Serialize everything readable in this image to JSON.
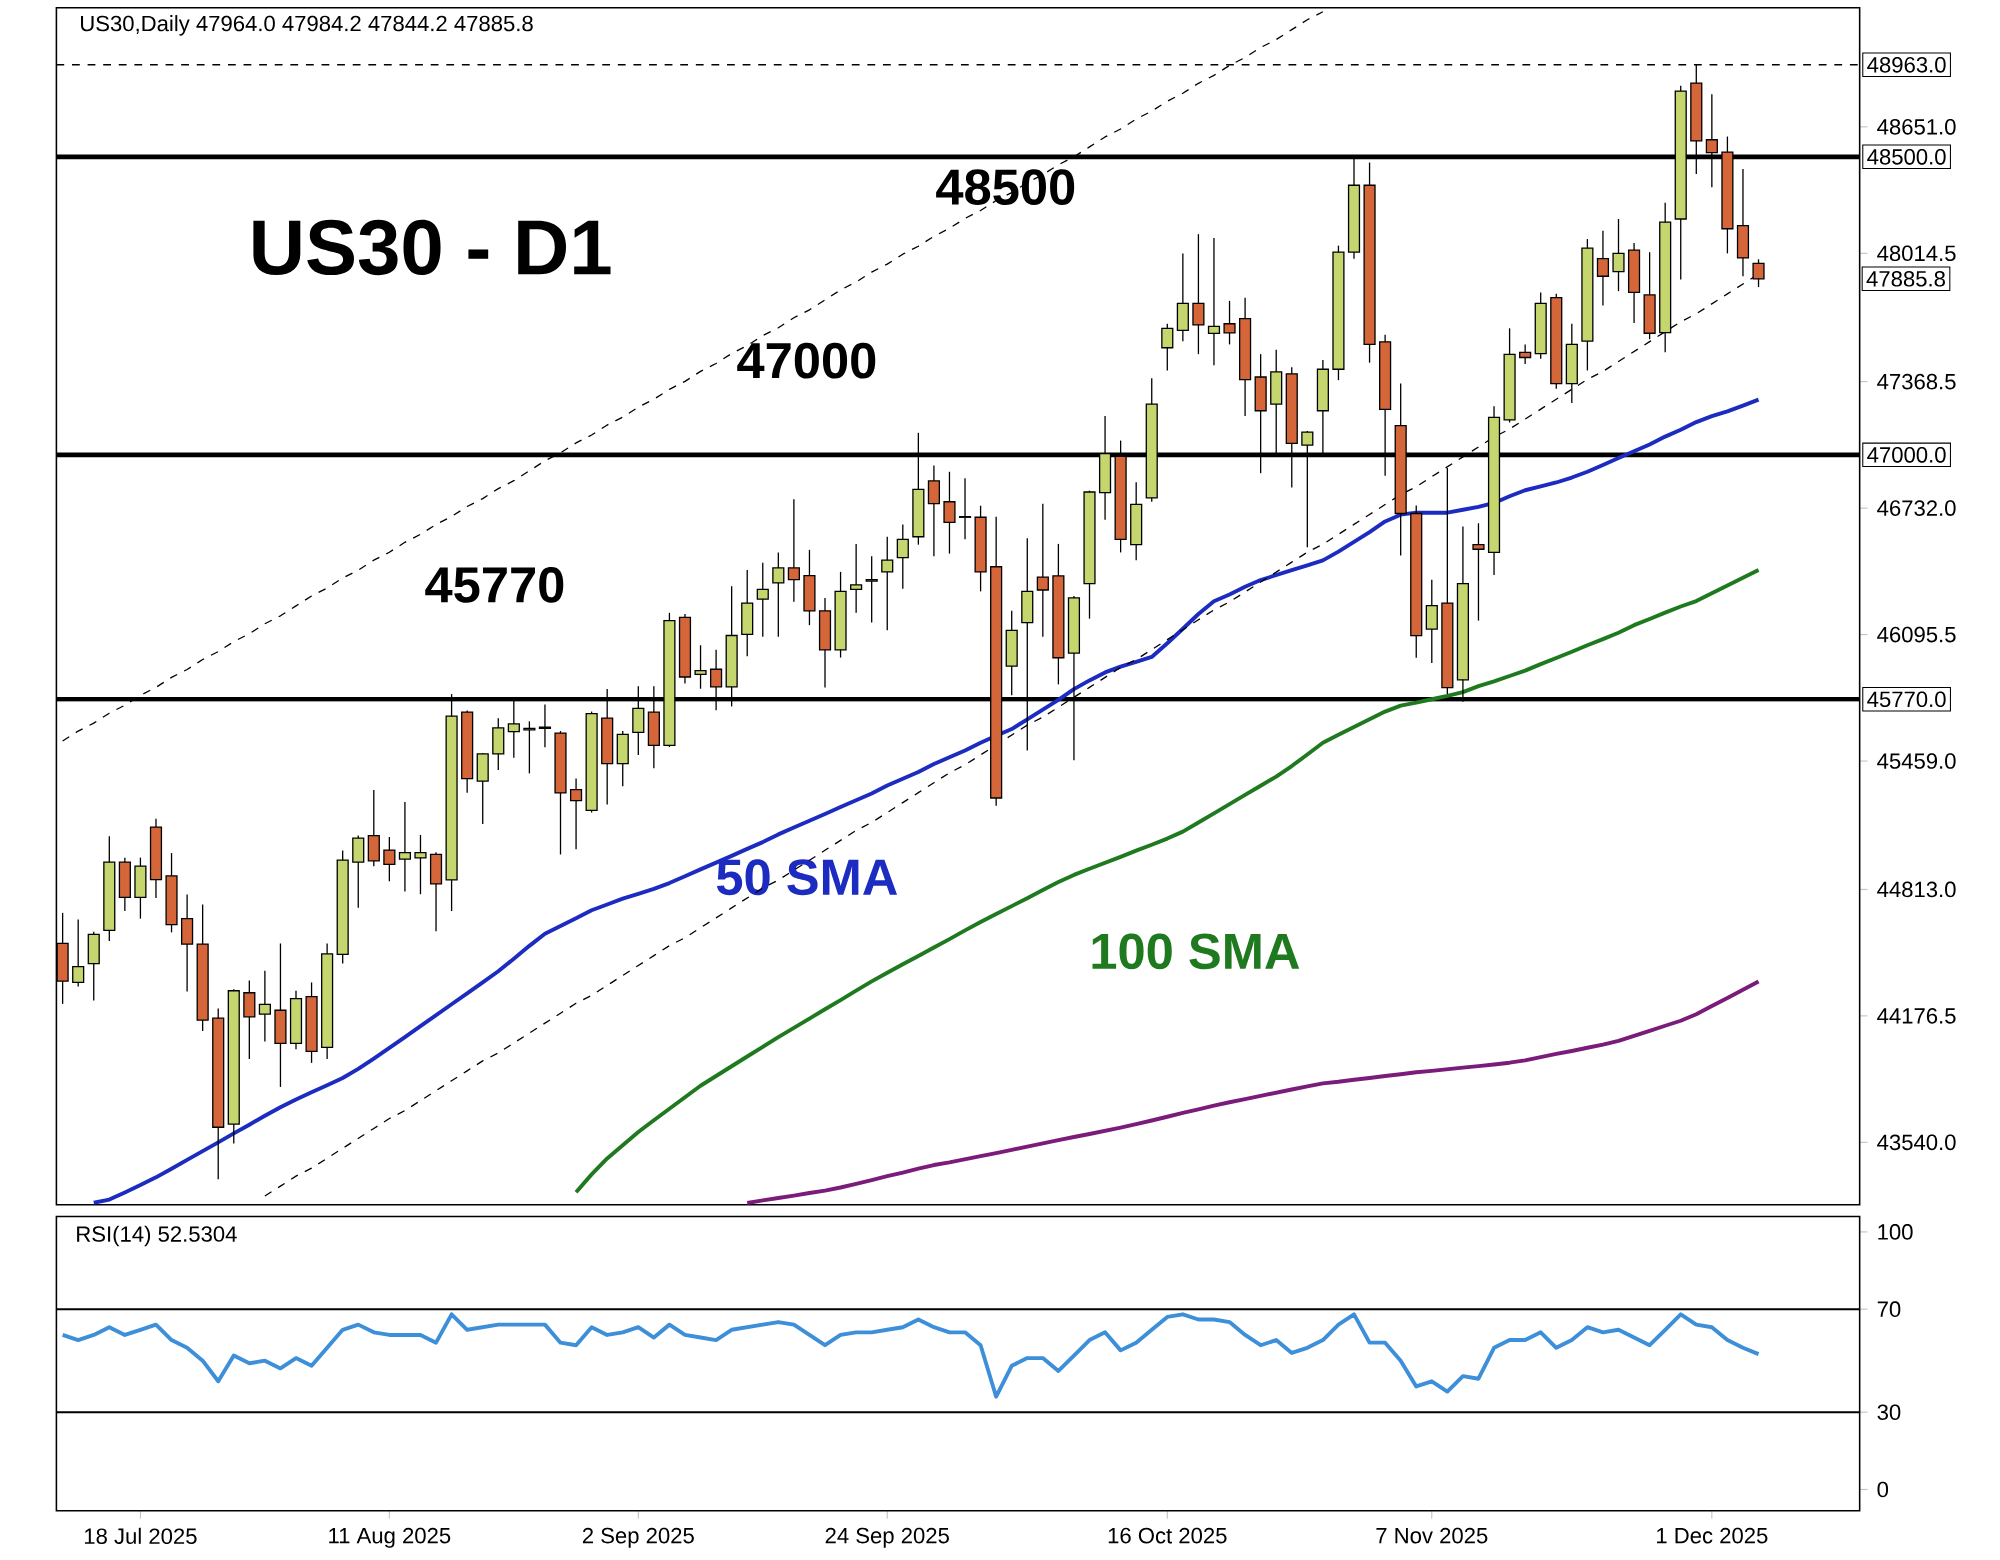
{
  "chart_data": [
    {
      "type": "candlestick",
      "title": "US30,Daily 47964.0 47984.2 47844.2 47885.8",
      "categories": [
        null,
        null,
        null,
        null,
        null,
        null,
        null,
        null,
        null,
        null,
        null,
        null,
        null,
        null,
        null,
        null,
        null,
        null,
        null,
        null,
        null,
        null,
        null,
        null,
        null,
        null,
        null,
        null,
        null,
        null,
        null,
        null,
        null,
        null,
        null,
        null,
        null,
        null,
        null,
        null,
        null,
        null,
        null,
        null,
        null,
        null,
        null,
        null,
        null,
        null,
        null,
        null,
        null,
        null,
        null,
        null,
        null,
        null,
        null,
        null,
        null,
        null,
        null,
        null,
        null,
        null,
        null,
        null,
        null,
        null,
        null,
        null,
        null,
        null,
        null,
        null,
        null,
        null,
        null,
        null,
        null,
        null,
        null,
        null,
        null,
        null,
        null,
        null,
        null,
        null,
        null,
        null,
        null,
        null,
        null,
        null,
        null,
        null,
        null,
        null,
        null,
        null,
        null,
        null,
        null,
        null,
        null,
        null,
        null,
        null
      ],
      "ohlc": [
        [
          44541,
          44695,
          44237,
          44352
        ],
        [
          44345,
          44662,
          44325,
          44424
        ],
        [
          44440,
          44600,
          44254,
          44587
        ],
        [
          44607,
          45081,
          44554,
          44950
        ],
        [
          44950,
          44973,
          44705,
          44773
        ],
        [
          44773,
          44973,
          44666,
          44930
        ],
        [
          45127,
          45169,
          44770,
          44862
        ],
        [
          44881,
          44996,
          44597,
          44636
        ],
        [
          44666,
          44787,
          44299,
          44538
        ],
        [
          44538,
          44737,
          44100,
          44155
        ],
        [
          44165,
          44214,
          43354,
          43616
        ],
        [
          43632,
          44310,
          43534,
          44303
        ],
        [
          44293,
          44355,
          43959,
          44172
        ],
        [
          44185,
          44404,
          44048,
          44234
        ],
        [
          44205,
          44541,
          43819,
          44038
        ],
        [
          44038,
          44303,
          44008,
          44263
        ],
        [
          44273,
          44345,
          43940,
          43998
        ],
        [
          44018,
          44541,
          43959,
          44489
        ],
        [
          44486,
          45009,
          44440,
          44960
        ],
        [
          44950,
          45084,
          44721,
          45071
        ],
        [
          45084,
          45313,
          44930,
          44957
        ],
        [
          45011,
          45077,
          44854,
          44939
        ],
        [
          44966,
          45253,
          44802,
          44998
        ],
        [
          44972,
          45087,
          44789,
          44998
        ],
        [
          44989,
          45000,
          44603,
          44841
        ],
        [
          44861,
          45796,
          44704,
          45685
        ],
        [
          45705,
          45714,
          45299,
          45371
        ],
        [
          45358,
          45500,
          45142,
          45495
        ],
        [
          45495,
          45675,
          45414,
          45626
        ],
        [
          45607,
          45770,
          45476,
          45646
        ],
        [
          45616,
          45659,
          45397,
          45623
        ],
        [
          45623,
          45744,
          45528,
          45630
        ],
        [
          45600,
          45610,
          44989,
          45299
        ],
        [
          45315,
          45371,
          45015,
          45260
        ],
        [
          45211,
          45708,
          45200,
          45698
        ],
        [
          45675,
          45822,
          45240,
          45446
        ],
        [
          45446,
          45610,
          45332,
          45593
        ],
        [
          45603,
          45835,
          45489,
          45724
        ],
        [
          45705,
          45835,
          45423,
          45538
        ],
        [
          45538,
          46205,
          45530,
          46166
        ],
        [
          46182,
          46199,
          45849,
          45882
        ],
        [
          45895,
          46042,
          45823,
          45914
        ],
        [
          45921,
          46019,
          45715,
          45832
        ],
        [
          45832,
          46339,
          45734,
          46091
        ],
        [
          46097,
          46421,
          45986,
          46254
        ],
        [
          46274,
          46457,
          46084,
          46323
        ],
        [
          46356,
          46509,
          46084,
          46431
        ],
        [
          46431,
          46777,
          46261,
          46372
        ],
        [
          46392,
          46522,
          46143,
          46215
        ],
        [
          46215,
          46280,
          45829,
          46019
        ],
        [
          46019,
          46411,
          45980,
          46313
        ],
        [
          46323,
          46552,
          46205,
          46346
        ],
        [
          46365,
          46490,
          46156,
          46372
        ],
        [
          46411,
          46588,
          46117,
          46470
        ],
        [
          46483,
          46650,
          46326,
          46575
        ],
        [
          46588,
          47111,
          46548,
          46826
        ],
        [
          46869,
          46947,
          46490,
          46755
        ],
        [
          46764,
          46915,
          46503,
          46660
        ],
        [
          46689,
          46882,
          46575,
          46686
        ],
        [
          46686,
          46744,
          46313,
          46411
        ],
        [
          46437,
          46689,
          45234,
          45273
        ],
        [
          45937,
          46215,
          45790,
          46117
        ],
        [
          46156,
          46581,
          45512,
          46313
        ],
        [
          46385,
          46754,
          46084,
          46320
        ],
        [
          46391,
          46552,
          45845,
          45979
        ],
        [
          46002,
          46290,
          45463,
          46280
        ],
        [
          46352,
          46820,
          46176,
          46813
        ],
        [
          46810,
          47196,
          46673,
          47006
        ],
        [
          46993,
          47072,
          46509,
          46575
        ],
        [
          46548,
          46862,
          46470,
          46751
        ],
        [
          46784,
          47385,
          46764,
          47255
        ],
        [
          47539,
          47660,
          47425,
          47637
        ],
        [
          47627,
          48013,
          47572,
          47762
        ],
        [
          47762,
          48111,
          47507,
          47654
        ],
        [
          47611,
          48092,
          47451,
          47647
        ],
        [
          47660,
          47775,
          47556,
          47614
        ],
        [
          47686,
          47791,
          47196,
          47379
        ],
        [
          47392,
          47507,
          46908,
          47222
        ],
        [
          47255,
          47529,
          46999,
          47418
        ],
        [
          47408,
          47441,
          46836,
          47058
        ],
        [
          47049,
          47120,
          46535,
          47114
        ],
        [
          47222,
          47477,
          46993,
          47431
        ],
        [
          47431,
          48053,
          47376,
          48020
        ],
        [
          48020,
          48497,
          47987,
          48357
        ],
        [
          48357,
          48471,
          47464,
          47556
        ],
        [
          47569,
          47604,
          46895,
          47229
        ],
        [
          47147,
          47359,
          46493,
          46705
        ],
        [
          46705,
          46745,
          45979,
          46090
        ],
        [
          46123,
          46372,
          45953,
          46241
        ],
        [
          46254,
          46934,
          45796,
          45829
        ],
        [
          45868,
          46640,
          45757,
          46352
        ],
        [
          46548,
          46656,
          46166,
          46525
        ],
        [
          46509,
          47245,
          46395,
          47189
        ],
        [
          47176,
          47637,
          47163,
          47506
        ],
        [
          47516,
          47555,
          47457,
          47490
        ],
        [
          47510,
          47817,
          47484,
          47762
        ],
        [
          47791,
          47811,
          47333,
          47359
        ],
        [
          47359,
          47660,
          47261,
          47556
        ],
        [
          47572,
          48086,
          47425,
          48040
        ],
        [
          47988,
          48128,
          47752,
          47899
        ],
        [
          47922,
          48187,
          47824,
          48014
        ],
        [
          48030,
          48066,
          47664,
          47818
        ],
        [
          47805,
          48020,
          47582,
          47612
        ],
        [
          47615,
          48269,
          47517,
          48171
        ],
        [
          48187,
          48858,
          47883,
          48831
        ],
        [
          48871,
          48963,
          48413,
          48580
        ],
        [
          48586,
          48815,
          48347,
          48521
        ],
        [
          48524,
          48602,
          48014,
          48138
        ],
        [
          48154,
          48439,
          47899,
          47991
        ],
        [
          47964,
          47984.2,
          47844.2,
          47885.8
        ]
      ],
      "series": [
        {
          "type": "line",
          "name": "50 SMA",
          "color": "#1c2bc0",
          "values": [
            null,
            null,
            43236,
            43252,
            43288,
            43325,
            43364,
            43407,
            43452,
            43496,
            43540,
            43585,
            43629,
            43674,
            43717,
            43756,
            43792,
            43827,
            43864,
            43910,
            43962,
            44016,
            44070,
            44125,
            44180,
            44235,
            44290,
            44345,
            44401,
            44464,
            44529,
            44590,
            44629,
            44668,
            44708,
            44737,
            44767,
            44791,
            44816,
            44845,
            44879,
            44914,
            44948,
            44982,
            45017,
            45051,
            45090,
            45125,
            45159,
            45193,
            45228,
            45262,
            45296,
            45336,
            45370,
            45404,
            45444,
            45478,
            45512,
            45551,
            45586,
            45620,
            45669,
            45718,
            45767,
            45821,
            45865,
            45905,
            45934,
            45958,
            45983,
            46052,
            46125,
            46199,
            46263,
            46297,
            46336,
            46370,
            46395,
            46420,
            46444,
            46469,
            46513,
            46562,
            46611,
            46665,
            46699,
            46709,
            46709,
            46709,
            46724,
            46738,
            46758,
            46792,
            46822,
            46841,
            46861,
            46886,
            46915,
            46949,
            46984,
            47018,
            47052,
            47092,
            47126,
            47165,
            47195,
            47219,
            47248,
            47278
          ]
        },
        {
          "type": "line",
          "name": "100 SMA",
          "color": "#1f7a1f",
          "values": [
            null,
            null,
            null,
            null,
            null,
            null,
            null,
            null,
            null,
            null,
            null,
            null,
            null,
            null,
            null,
            null,
            null,
            null,
            null,
            null,
            null,
            null,
            null,
            null,
            null,
            null,
            null,
            null,
            null,
            null,
            null,
            null,
            null,
            43289,
            43379,
            43459,
            43526,
            43592,
            43651,
            43709,
            43767,
            43825,
            43874,
            43923,
            43972,
            44021,
            44070,
            44116,
            44163,
            44210,
            44256,
            44304,
            44350,
            44394,
            44436,
            44478,
            44521,
            44563,
            44607,
            44649,
            44689,
            44729,
            44769,
            44810,
            44850,
            44886,
            44917,
            44947,
            44977,
            45008,
            45038,
            45069,
            45104,
            45150,
            45196,
            45242,
            45289,
            45335,
            45381,
            45434,
            45492,
            45551,
            45591,
            45630,
            45669,
            45708,
            45738,
            45753,
            45770,
            45787,
            45806,
            45836,
            45860,
            45887,
            45914,
            45947,
            45978,
            46009,
            46042,
            46073,
            46105,
            46143,
            46174,
            46206,
            46237,
            46264,
            46303,
            46342,
            46381,
            46421
          ]
        },
        {
          "type": "line",
          "color": "#7b1c7b",
          "values": [
            null,
            null,
            null,
            null,
            null,
            null,
            null,
            null,
            null,
            null,
            null,
            null,
            null,
            null,
            null,
            null,
            null,
            null,
            null,
            null,
            null,
            null,
            null,
            null,
            null,
            null,
            null,
            null,
            null,
            null,
            null,
            null,
            null,
            null,
            null,
            null,
            null,
            null,
            null,
            null,
            null,
            null,
            null,
            null,
            43235,
            43248,
            43260,
            43272,
            43285,
            43297,
            43313,
            43331,
            43350,
            43370,
            43388,
            43408,
            43426,
            43439,
            43455,
            43471,
            43486,
            43502,
            43519,
            43535,
            43551,
            43567,
            43582,
            43598,
            43614,
            43632,
            43650,
            43669,
            43688,
            43706,
            43725,
            43742,
            43758,
            43774,
            43790,
            43806,
            43822,
            43837,
            43845,
            43855,
            43864,
            43874,
            43883,
            43893,
            43900,
            43908,
            43916,
            43924,
            43932,
            43941,
            43953,
            43969,
            43985,
            44000,
            44016,
            44032,
            44051,
            44076,
            44101,
            44127,
            44152,
            44185,
            44226,
            44267,
            44308,
            44350
          ]
        },
        {
          "type": "line",
          "color": "#000000",
          "line_style": "dashed",
          "values": [
            45560,
            45610,
            45650,
            45700,
            45740,
            45790,
            45830,
            45880,
            45920,
            45970,
            46010,
            46060,
            46100,
            46150,
            46190,
            46240,
            46290,
            46330,
            46380,
            46420,
            46470,
            46510,
            46560,
            46600,
            46650,
            46690,
            46740,
            46780,
            46830,
            46870,
            46920,
            46970,
            47010,
            47060,
            47100,
            47150,
            47190,
            47240,
            47280,
            47330,
            47370,
            47420,
            47460,
            47510,
            47550,
            47600,
            47640,
            47690,
            47730,
            47780,
            47830,
            47870,
            47920,
            47960,
            48010,
            48050,
            48100,
            48140,
            48190,
            48230,
            48280,
            48320,
            48370,
            48410,
            48460,
            48500,
            48550,
            48600,
            48640,
            48690,
            48730,
            48780,
            48820,
            48870,
            48910,
            48960,
            49000,
            49050,
            49090,
            49140,
            49190,
            49230,
            null,
            null,
            null,
            null,
            null,
            null,
            null,
            null,
            null,
            null,
            null,
            null,
            null,
            null,
            null,
            null,
            null,
            null,
            null,
            null,
            null,
            null,
            null,
            null,
            null,
            null,
            null,
            null
          ]
        },
        {
          "type": "line",
          "color": "#000000",
          "line_style": "dashed",
          "values": [
            null,
            null,
            null,
            null,
            null,
            null,
            null,
            null,
            null,
            null,
            null,
            null,
            null,
            43270,
            43320,
            43370,
            43410,
            43460,
            43510,
            43560,
            43610,
            43660,
            43700,
            43750,
            43800,
            43850,
            43900,
            43950,
            43990,
            44040,
            44090,
            44140,
            44190,
            44240,
            44280,
            44330,
            44380,
            44430,
            44480,
            44530,
            44570,
            44620,
            44670,
            44720,
            44770,
            44820,
            44860,
            44910,
            44960,
            45010,
            45060,
            45110,
            45150,
            45200,
            45250,
            45300,
            45350,
            45400,
            45440,
            45490,
            45540,
            45590,
            45640,
            45680,
            45730,
            45780,
            45830,
            45880,
            45930,
            45970,
            46020,
            46070,
            46120,
            46170,
            46220,
            46260,
            46310,
            46360,
            46410,
            46460,
            46510,
            46550,
            46600,
            46650,
            46700,
            46750,
            46800,
            46840,
            46890,
            46940,
            46990,
            47040,
            47090,
            47130,
            47180,
            47230,
            47280,
            47330,
            47380,
            47420,
            47470,
            47520,
            47570,
            47620,
            47670,
            47710,
            47760,
            47810,
            47860,
            47910
          ]
        }
      ],
      "ref_lines": [
        {
          "axis": "y",
          "value": 48963,
          "label": "48963.0",
          "color": "#000000",
          "line_style": "dashed"
        },
        {
          "axis": "y",
          "value": 48500,
          "label": "48500.0",
          "color": "#000000"
        },
        {
          "axis": "y",
          "value": 47000,
          "label": "47000.0",
          "color": "#000000"
        },
        {
          "axis": "y",
          "value": 45770,
          "label": "45770.0",
          "color": "#000000"
        }
      ],
      "annotations": [
        "US30 - D1",
        "48500",
        "47000",
        "45770",
        "47885.8"
      ],
      "ylim": [
        43226,
        49250
      ],
      "yticks": [
        {
          "value": 43540,
          "label": "43540.0"
        },
        {
          "value": 44176.5,
          "label": "44176.5"
        },
        {
          "value": 44813,
          "label": "44813.0"
        },
        {
          "value": 45459,
          "label": "45459.0"
        },
        {
          "value": 46095.5,
          "label": "46095.5"
        },
        {
          "value": 46732,
          "label": "46732.0"
        },
        {
          "value": 47368.5,
          "label": "47368.5"
        },
        {
          "value": 48014.5,
          "label": "48014.5"
        },
        {
          "value": 48651,
          "label": "48651.0"
        }
      ],
      "tick_labels": "y"
    },
    {
      "type": "line",
      "title": "RSI(14) 52.5304",
      "categories": [
        null,
        null,
        null,
        null,
        null,
        "18 Jul 2025",
        null,
        null,
        null,
        null,
        null,
        null,
        null,
        null,
        null,
        null,
        null,
        null,
        null,
        null,
        null,
        "11 Aug 2025",
        null,
        null,
        null,
        null,
        null,
        null,
        null,
        null,
        null,
        null,
        null,
        null,
        null,
        null,
        null,
        "2 Sep 2025",
        null,
        null,
        null,
        null,
        null,
        null,
        null,
        null,
        null,
        null,
        null,
        null,
        null,
        null,
        null,
        "24 Sep 2025",
        null,
        null,
        null,
        null,
        null,
        null,
        null,
        null,
        null,
        null,
        null,
        null,
        null,
        null,
        null,
        null,
        null,
        "16 Oct 2025",
        null,
        null,
        null,
        null,
        null,
        null,
        null,
        null,
        null,
        null,
        null,
        null,
        null,
        null,
        null,
        null,
        "7 Nov 2025",
        null,
        null,
        null,
        null,
        null,
        null,
        null,
        null,
        null,
        null,
        null,
        null,
        null,
        null,
        null,
        null,
        null,
        "1 Dec 2025",
        null,
        null,
        null
      ],
      "series": [
        {
          "color": "#3d8fd9",
          "values": [
            60,
            58,
            60,
            63,
            60,
            62,
            64,
            58,
            55,
            50,
            42,
            52,
            49,
            50,
            47,
            51,
            48,
            55,
            62,
            64,
            61,
            60,
            60,
            60,
            57,
            68,
            62,
            63,
            64,
            64,
            64,
            64,
            57,
            56,
            63,
            60,
            61,
            63,
            59,
            64,
            60,
            59,
            58,
            62,
            63,
            64,
            65,
            64,
            60,
            56,
            60,
            61,
            61,
            62,
            63,
            66,
            63,
            61,
            61,
            56,
            36,
            48,
            51,
            51,
            46,
            52,
            58,
            61,
            54,
            57,
            62,
            67,
            68,
            66,
            66,
            65,
            60,
            56,
            58,
            53,
            55,
            58,
            64,
            68,
            57,
            57,
            50,
            40,
            42,
            38,
            44,
            43,
            55,
            58,
            58,
            61,
            55,
            58,
            63,
            61,
            62,
            59,
            56,
            62,
            68,
            64,
            63,
            58,
            55,
            52.53
          ]
        }
      ],
      "ref_lines": [
        {
          "axis": "y",
          "value": 70,
          "color": "#000000"
        },
        {
          "axis": "y",
          "value": 30,
          "color": "#000000"
        }
      ],
      "ylim": [
        -8.3,
        106
      ],
      "yticks": [
        0,
        30,
        70,
        100
      ]
    }
  ]
}
